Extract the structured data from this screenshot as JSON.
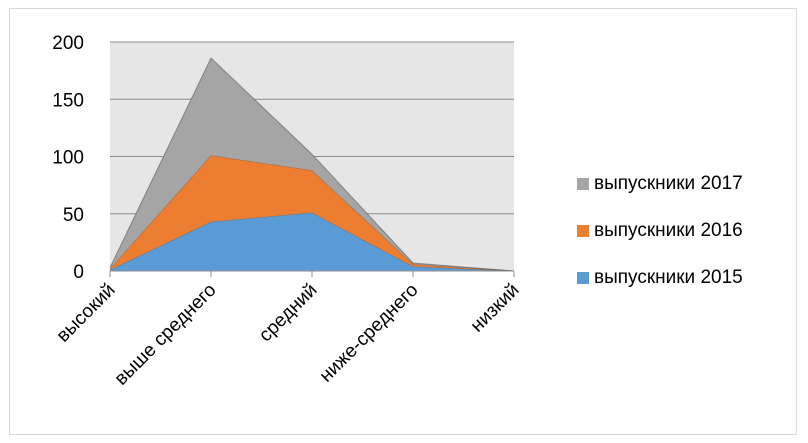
{
  "chart_data": {
    "type": "area",
    "stacked": true,
    "categories": [
      "высокий",
      "выше среднего",
      "средний",
      "ниже-среднего",
      "низкий"
    ],
    "series": [
      {
        "name": "выпускники 2015",
        "values": [
          1,
          43,
          51,
          4,
          0
        ],
        "color": "#5b9bd5"
      },
      {
        "name": "выпускники 2016",
        "values": [
          1,
          58,
          37,
          2,
          0
        ],
        "color": "#ed7d31"
      },
      {
        "name": "выпускники 2017",
        "values": [
          1,
          85,
          14,
          1,
          0
        ],
        "color": "#a5a5a5"
      }
    ],
    "ylim": [
      0,
      200
    ],
    "yticks": [
      "0",
      "50",
      "100",
      "150",
      "200"
    ],
    "grid": true,
    "plot_background": "#e7e6e6",
    "legend_position": "right",
    "legend_order": [
      "выпускники 2017",
      "выпускники 2016",
      "выпускники 2015"
    ]
  }
}
